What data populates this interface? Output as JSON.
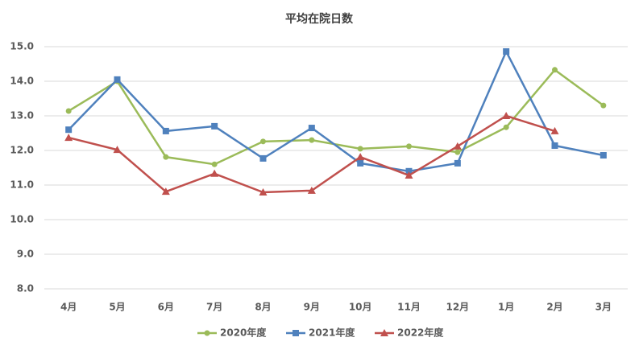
{
  "chart_data": {
    "type": "line",
    "title": "平均在院日数",
    "categories": [
      "4月",
      "5月",
      "6月",
      "7月",
      "8月",
      "9月",
      "10月",
      "11月",
      "12月",
      "1月",
      "2月",
      "3月"
    ],
    "series": [
      {
        "name": "2020年度",
        "color": "#9bbb59",
        "marker": "circle",
        "values": [
          13.14,
          14.0,
          11.81,
          11.6,
          12.26,
          12.3,
          12.05,
          12.12,
          11.95,
          12.67,
          14.33,
          13.3
        ]
      },
      {
        "name": "2021年度",
        "color": "#4f81bd",
        "marker": "square",
        "values": [
          12.6,
          14.05,
          12.56,
          12.7,
          11.77,
          12.65,
          11.63,
          11.4,
          11.63,
          14.86,
          12.14,
          11.86
        ]
      },
      {
        "name": "2022年度",
        "color": "#c0504d",
        "marker": "triangle",
        "values": [
          12.37,
          12.02,
          10.81,
          11.33,
          10.79,
          10.84,
          11.81,
          11.28,
          12.12,
          13.0,
          12.56,
          null
        ]
      }
    ],
    "ylim": [
      8,
      15
    ],
    "yticks": [
      {
        "value": 8,
        "label": "8.0"
      },
      {
        "value": 9,
        "label": "9.0"
      },
      {
        "value": 10,
        "label": "10.0"
      },
      {
        "value": 11,
        "label": "11.0"
      },
      {
        "value": 12,
        "label": "12.0"
      },
      {
        "value": 13,
        "label": "13.0"
      },
      {
        "value": 14,
        "label": "14.0"
      },
      {
        "value": 15,
        "label": "15.0"
      }
    ],
    "grid": true,
    "legend": "bottom"
  }
}
